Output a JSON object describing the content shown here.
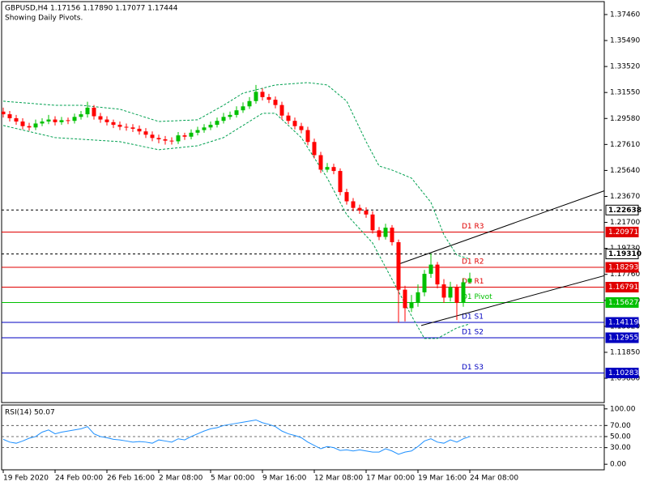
{
  "chart_data": {
    "type": "candlestick",
    "title": "GBPUSD,H4  1.17156 1.17890 1.17077 1.17444",
    "subtitle": "Showing Daily Pivots.",
    "categories": [
      "19 Feb 2020",
      null,
      null,
      null,
      null,
      null,
      null,
      null,
      "24 Feb 00:00",
      null,
      null,
      null,
      null,
      null,
      null,
      null,
      "26 Feb 16:00",
      null,
      null,
      null,
      null,
      null,
      null,
      null,
      "2 Mar 08:00",
      null,
      null,
      null,
      null,
      null,
      null,
      null,
      "5 Mar 00:00",
      null,
      null,
      null,
      null,
      null,
      null,
      null,
      "9 Mar 16:00",
      null,
      null,
      null,
      null,
      null,
      null,
      null,
      "12 Mar 08:00",
      null,
      null,
      null,
      null,
      null,
      null,
      null,
      "17 Mar 00:00",
      null,
      null,
      null,
      null,
      null,
      null,
      null,
      "19 Mar 16:00",
      null,
      null,
      null,
      null,
      null,
      null,
      null,
      "24 Mar 08:00"
    ],
    "open": [
      1.301,
      1.299,
      1.296,
      1.2935,
      1.29,
      1.289,
      1.292,
      1.2935,
      1.295,
      1.293,
      1.2945,
      1.294,
      1.297,
      1.299,
      1.304,
      1.2975,
      1.295,
      1.293,
      1.291,
      1.2895,
      1.289,
      1.288,
      1.286,
      1.2835,
      1.281,
      1.28,
      1.279,
      1.2785,
      1.283,
      1.282,
      1.285,
      1.287,
      1.289,
      1.291,
      1.294,
      1.297,
      1.2985,
      1.302,
      1.305,
      1.309,
      1.316,
      1.312,
      1.31,
      1.306,
      1.298,
      1.294,
      1.29,
      1.287,
      1.278,
      1.268,
      1.257,
      1.259,
      1.256,
      1.24,
      1.233,
      1.228,
      1.226,
      1.223,
      1.211,
      1.206,
      1.213,
      1.202,
      1.166,
      1.152,
      1.156,
      1.164,
      1.178,
      1.185,
      1.17,
      1.16,
      1.168,
      1.156,
      1.17156
    ],
    "high": [
      1.304,
      1.3015,
      1.2985,
      1.296,
      1.2925,
      1.295,
      1.296,
      1.2985,
      1.2975,
      1.297,
      1.2965,
      1.2995,
      1.3015,
      1.3085,
      1.306,
      1.3,
      1.2975,
      1.295,
      1.2935,
      1.292,
      1.2915,
      1.2905,
      1.2885,
      1.286,
      1.2835,
      1.2825,
      1.2815,
      1.2855,
      1.285,
      1.2875,
      1.2895,
      1.2915,
      1.2935,
      1.2965,
      1.3,
      1.301,
      1.305,
      1.308,
      1.312,
      1.3212,
      1.3185,
      1.3145,
      1.3125,
      1.3085,
      1.3005,
      1.2965,
      1.2925,
      1.2895,
      1.2805,
      1.2705,
      1.262,
      1.2615,
      1.258,
      1.2425,
      1.2355,
      1.2305,
      1.2285,
      1.2255,
      1.2135,
      1.216,
      1.215,
      1.204,
      1.169,
      1.162,
      1.17,
      1.181,
      1.1935,
      1.187,
      1.174,
      1.172,
      1.17,
      1.1745,
      1.1789
    ],
    "low": [
      1.2965,
      1.2935,
      1.291,
      1.2875,
      1.2865,
      1.287,
      1.29,
      1.2915,
      1.2905,
      1.291,
      1.2915,
      1.292,
      1.295,
      1.2965,
      1.295,
      1.2925,
      1.2905,
      1.2885,
      1.287,
      1.2865,
      1.2855,
      1.2835,
      1.281,
      1.2785,
      1.277,
      1.276,
      1.276,
      1.2765,
      1.2795,
      1.28,
      1.283,
      1.285,
      1.287,
      1.289,
      1.292,
      1.295,
      1.2965,
      1.3,
      1.303,
      1.307,
      1.3095,
      1.3075,
      1.3035,
      1.295,
      1.2915,
      1.2875,
      1.2845,
      1.2755,
      1.2655,
      1.2545,
      1.255,
      1.2535,
      1.2375,
      1.2305,
      1.2255,
      1.2235,
      1.2205,
      1.2085,
      1.2035,
      1.204,
      1.1995,
      1.141,
      1.142,
      1.149,
      1.153,
      1.161,
      1.175,
      1.167,
      1.156,
      1.157,
      1.143,
      1.153,
      1.17077
    ],
    "close": [
      1.299,
      1.296,
      1.2935,
      1.29,
      1.289,
      1.292,
      1.2935,
      1.295,
      1.293,
      1.2945,
      1.294,
      1.297,
      1.299,
      1.304,
      1.2975,
      1.295,
      1.293,
      1.291,
      1.2895,
      1.289,
      1.288,
      1.286,
      1.2835,
      1.281,
      1.28,
      1.279,
      1.2785,
      1.283,
      1.282,
      1.285,
      1.287,
      1.289,
      1.291,
      1.294,
      1.297,
      1.2985,
      1.302,
      1.305,
      1.309,
      1.316,
      1.312,
      1.31,
      1.306,
      1.298,
      1.294,
      1.29,
      1.287,
      1.278,
      1.268,
      1.257,
      1.259,
      1.256,
      1.24,
      1.233,
      1.228,
      1.226,
      1.223,
      1.211,
      1.206,
      1.213,
      1.202,
      1.166,
      1.152,
      1.156,
      1.164,
      1.178,
      1.185,
      1.17,
      1.16,
      1.168,
      1.156,
      1.1716,
      1.17444
    ],
    "up_color": "#00c000",
    "down_color": "#ff0000",
    "ylim": [
      1.0804,
      1.3844
    ],
    "yticks": [
      {
        "value": 1.3746,
        "label": "1.37460"
      },
      {
        "value": 1.3549,
        "label": "1.35490"
      },
      {
        "value": 1.3352,
        "label": "1.33520"
      },
      {
        "value": 1.3155,
        "label": "1.31550"
      },
      {
        "value": 1.2958,
        "label": "1.29580"
      },
      {
        "value": 1.2761,
        "label": "1.27610"
      },
      {
        "value": 1.2564,
        "label": "1.25640"
      },
      {
        "value": 1.2367,
        "label": "1.23670"
      },
      {
        "value": 1.217,
        "label": "1.21700"
      },
      {
        "value": 1.1973,
        "label": "1.19730"
      },
      {
        "value": 1.1776,
        "label": "1.17760"
      },
      {
        "value": 1.1579,
        "label": "1.15790"
      },
      {
        "value": 1.1382,
        "label": "1.13820"
      },
      {
        "value": 1.1185,
        "label": "1.11850"
      },
      {
        "value": 1.0988,
        "label": "1.09880"
      }
    ],
    "bands": {
      "color": "#00a050",
      "upper": {
        "x": [
          0,
          8,
          12,
          18,
          24,
          30,
          34,
          37,
          42,
          47,
          50,
          53,
          56,
          58,
          60,
          63,
          66,
          68,
          70,
          72
        ],
        "values": [
          1.3089,
          1.3058,
          1.3058,
          1.3028,
          1.2935,
          1.2948,
          1.3058,
          1.315,
          1.3212,
          1.323,
          1.3212,
          1.3089,
          1.2782,
          1.2598,
          1.2567,
          1.2506,
          1.2322,
          1.2076,
          1.1922,
          1.1892
        ]
      },
      "lower": {
        "x": [
          0,
          8,
          18,
          24,
          30,
          34,
          37,
          40,
          42,
          46,
          50,
          53,
          57,
          60,
          63,
          65,
          67,
          70,
          72
        ],
        "values": [
          1.2905,
          1.2813,
          1.2782,
          1.2721,
          1.2751,
          1.2813,
          1.2905,
          1.2997,
          1.2997,
          1.2813,
          1.2506,
          1.2229,
          1.2014,
          1.1738,
          1.1462,
          1.129,
          1.129,
          1.137,
          1.1401
        ]
      }
    },
    "levels": [
      {
        "value": 1.22638,
        "label": "1.22638",
        "color": "#000000",
        "dashed": true
      },
      {
        "name": "D1 R3",
        "value": 1.20971,
        "label": "1.20971",
        "color": "#e00000"
      },
      {
        "value": 1.1931,
        "label": "1.19310",
        "color": "#000000",
        "dashed": true
      },
      {
        "name": "D1 R2",
        "value": 1.18293,
        "label": "1.18293",
        "color": "#e00000"
      },
      {
        "name": "D1 R1",
        "value": 1.16791,
        "label": "1.16791",
        "color": "#e00000"
      },
      {
        "name": "D1 Pivot",
        "value": 1.15627,
        "label": "1.15627",
        "color": "#00c000"
      },
      {
        "name": "D1 S1",
        "value": 1.14119,
        "label": "1.14119",
        "color": "#0000c0"
      },
      {
        "name": "D1 S2",
        "value": 1.12955,
        "label": "1.12955",
        "color": "#0000c0"
      },
      {
        "name": "D1 S3",
        "value": 1.10283,
        "label": "1.10283",
        "color": "#0000c0"
      }
    ],
    "trendlines": [
      {
        "x": [
          60.75,
          93
        ],
        "y": [
          1.1849,
          1.2414
        ]
      },
      {
        "x": [
          64.5,
          93
        ],
        "y": [
          1.1388,
          1.1769
        ]
      }
    ],
    "rsi": {
      "title": "RSI(14) 50.07",
      "color": "#1e90ff",
      "values": [
        45,
        40,
        38,
        42,
        47,
        50,
        58,
        62,
        55,
        58,
        60,
        62,
        64,
        68,
        55,
        50,
        48,
        45,
        44,
        42,
        40,
        41,
        40,
        38,
        44,
        42,
        40,
        46,
        44,
        50,
        55,
        60,
        64,
        66,
        70,
        72,
        74,
        76,
        78,
        80,
        75,
        72,
        68,
        60,
        55,
        52,
        48,
        40,
        34,
        28,
        32,
        30,
        25,
        26,
        24,
        26,
        24,
        22,
        22,
        28,
        24,
        18,
        22,
        24,
        32,
        42,
        46,
        40,
        38,
        44,
        40,
        46,
        50.07
      ],
      "ylim": [
        -10,
        107
      ],
      "yticks": [
        {
          "value": 100,
          "label": "100.00"
        },
        {
          "value": 70,
          "label": "70.00"
        },
        {
          "value": 50,
          "label": "50.00"
        },
        {
          "value": 30,
          "label": "30.00"
        },
        {
          "value": 0,
          "label": "0.00"
        }
      ],
      "levels": [
        70,
        50,
        30
      ]
    }
  }
}
